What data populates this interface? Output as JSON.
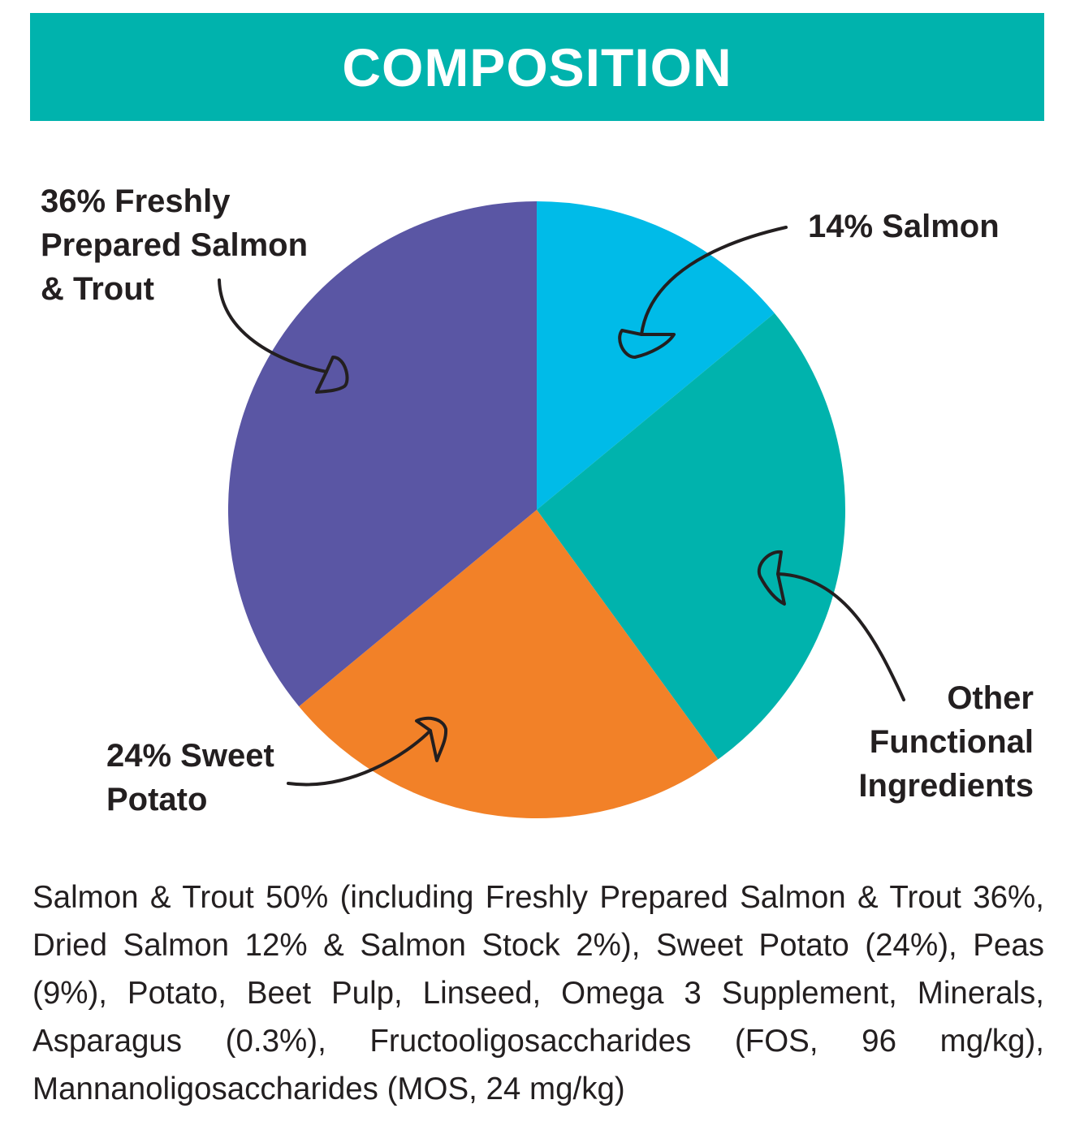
{
  "header": {
    "title": "COMPOSITION"
  },
  "chart_data": {
    "type": "pie",
    "title": "COMPOSITION",
    "start_angle_deg": 0,
    "direction": "clockwise",
    "slices": [
      {
        "label": "14% Salmon",
        "value": 14,
        "color": "#00bbe8"
      },
      {
        "label": "Other Functional Ingredients",
        "value": 26,
        "color": "#00b3ad"
      },
      {
        "label": "24% Sweet Potato",
        "value": 24,
        "color": "#f28128"
      },
      {
        "label": "36% Freshly Prepared Salmon & Trout",
        "value": 36,
        "color": "#5a56a4"
      }
    ],
    "labels": {
      "salmon_trout": "36% Freshly\nPrepared Salmon\n& Trout",
      "salmon": "14% Salmon",
      "other": "Other\nFunctional\nIngredients",
      "sweet_potato": "24% Sweet\nPotato"
    }
  },
  "ingredients_text": "Salmon & Trout 50% (including Freshly Prepared Salmon & Trout 36%, Dried Salmon 12% & Salmon Stock 2%), Sweet Potato (24%), Peas (9%), Potato, Beet Pulp, Linseed, Omega 3 Supplement, Minerals, Asparagus (0.3%), Fructooligosaccharides (FOS, 96 mg/kg), Mannanoligosaccharides (MOS, 24 mg/kg)",
  "colors": {
    "banner": "#00b3ad",
    "text": "#231f20"
  }
}
